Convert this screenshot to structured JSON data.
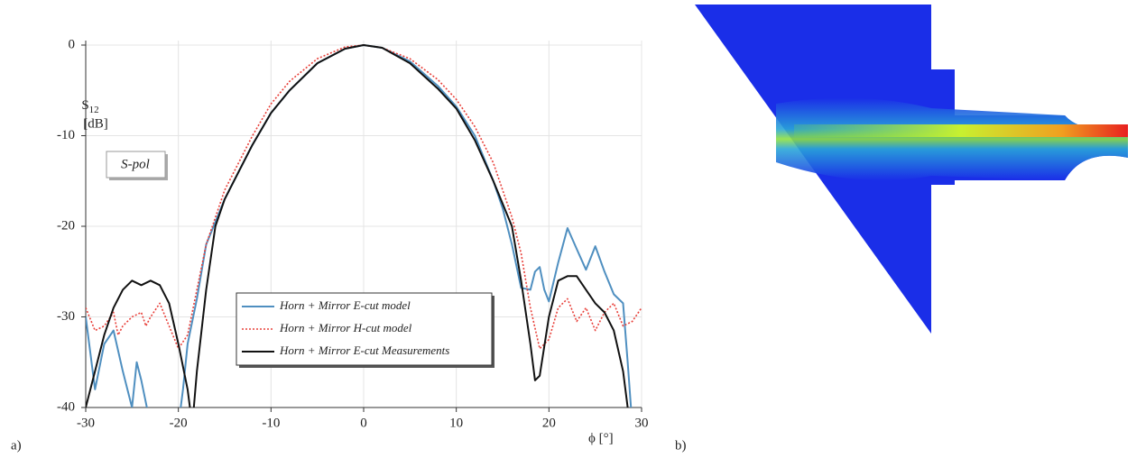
{
  "panels": [
    "a)",
    "b)"
  ],
  "chart_data": {
    "type": "line",
    "ylabel": {
      "text": "S",
      "subscript": "12",
      "unit": "[dB]"
    },
    "xlabel": "ϕ [°]",
    "annotation": "S-pol",
    "xlim": [
      -30,
      30
    ],
    "xticks": [
      -30,
      -20,
      -10,
      0,
      10,
      20,
      30
    ],
    "ylim": [
      -40,
      0
    ],
    "yticks": [
      0,
      -10,
      -20,
      -30,
      -40
    ],
    "grid": true,
    "series": [
      {
        "name": "Horn + Mirror E-cut model",
        "color": "#4f8fc0",
        "dash": "solid",
        "x": [
          -30,
          -29,
          -28,
          -27,
          -26,
          -25,
          -24.5,
          -24,
          -23,
          -20,
          -19.5,
          -19,
          -18,
          -17,
          -15,
          -12,
          -10,
          -8,
          -5,
          -2,
          0,
          2,
          5,
          8,
          10,
          12,
          14,
          15,
          16,
          17,
          18,
          18.5,
          19,
          19.5,
          20,
          21,
          22,
          23,
          24,
          25,
          26,
          27,
          28,
          28.5,
          29
        ],
        "values": [
          -30,
          -38,
          -33,
          -31.5,
          -36,
          -40,
          -35,
          -37,
          -42,
          -42,
          -38,
          -33,
          -28,
          -22,
          -17,
          -11,
          -7.5,
          -5,
          -2,
          -0.4,
          0,
          -0.3,
          -1.8,
          -4.5,
          -6.8,
          -10,
          -15,
          -18,
          -22,
          -26.8,
          -27,
          -25,
          -24.5,
          -27,
          -28.3,
          -24,
          -20.2,
          -22.5,
          -24.8,
          -22.2,
          -25,
          -27.5,
          -28.5,
          -35,
          -42
        ]
      },
      {
        "name": "Horn + Mirror H-cut model",
        "color": "#e8403a",
        "dash": "dotted",
        "x": [
          -30,
          -29,
          -28,
          -27,
          -26.5,
          -26,
          -25,
          -24,
          -23.5,
          -23,
          -22,
          -21,
          -20,
          -19,
          -18,
          -17,
          -15,
          -12,
          -10,
          -8,
          -5,
          -2,
          0,
          2,
          5,
          8,
          10,
          12,
          14,
          16,
          17,
          18,
          19,
          20,
          21,
          22,
          23,
          24,
          25,
          26,
          27,
          28,
          29,
          30
        ],
        "values": [
          -29,
          -31.5,
          -31,
          -29.5,
          -32,
          -31,
          -30,
          -29.5,
          -31,
          -30,
          -28.5,
          -31,
          -33.5,
          -32,
          -27,
          -22,
          -16,
          -10,
          -6.5,
          -4,
          -1.5,
          -0.2,
          0,
          -0.3,
          -1.5,
          -3.8,
          -6,
          -9,
          -13,
          -19,
          -23,
          -29,
          -33.5,
          -32.5,
          -29,
          -28,
          -30.5,
          -29,
          -31.5,
          -29.5,
          -28.5,
          -31,
          -30.5,
          -29
        ]
      },
      {
        "name": "Horn + Mirror E-cut Measurements",
        "color": "#111111",
        "dash": "solid",
        "x": [
          -30,
          -29,
          -28,
          -27,
          -26,
          -25,
          -24,
          -23,
          -22,
          -21,
          -20,
          -19,
          -18.5,
          -18,
          -17,
          -16,
          -15,
          -12,
          -10,
          -8,
          -5,
          -2,
          0,
          2,
          5,
          8,
          10,
          12,
          14,
          16,
          17,
          18,
          18.5,
          19,
          20,
          21,
          22,
          23,
          24,
          25,
          26,
          27,
          28,
          28.5
        ],
        "values": [
          -40,
          -36,
          -32,
          -29,
          -27,
          -26,
          -26.5,
          -26,
          -26.5,
          -28.5,
          -33,
          -38,
          -42,
          -36,
          -27,
          -20,
          -17,
          -11,
          -7.5,
          -5,
          -2,
          -0.4,
          0,
          -0.3,
          -2,
          -4.8,
          -7,
          -10.5,
          -15,
          -20,
          -26,
          -33,
          -37,
          -36.5,
          -30,
          -26,
          -25.5,
          -25.5,
          -27,
          -28.5,
          -29.5,
          -31.5,
          -36,
          -40
        ]
      }
    ]
  }
}
